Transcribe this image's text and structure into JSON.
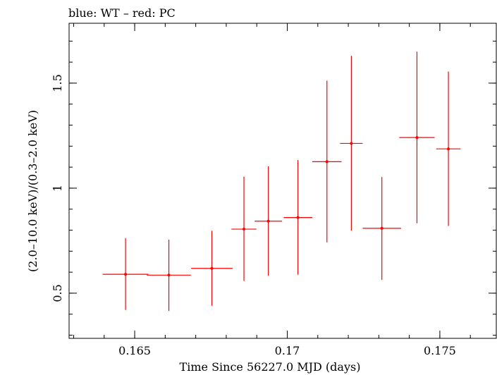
{
  "chart_data": {
    "type": "scatter",
    "title": "blue: WT – red: PC",
    "xlabel": "Time Since 56227.0 MJD (days)",
    "ylabel": "(2.0–10.0 keV)/(0.3–2.0 keV)",
    "xlim": [
      0.16285,
      0.17685
    ],
    "ylim": [
      0.285,
      1.785
    ],
    "x_ticks": [
      {
        "value": 0.165,
        "label": "0.165"
      },
      {
        "value": 0.17,
        "label": "0.17"
      },
      {
        "value": 0.175,
        "label": "0.175"
      }
    ],
    "y_ticks": [
      {
        "value": 0.5,
        "label": "0.5"
      },
      {
        "value": 1.0,
        "label": "1"
      },
      {
        "value": 1.5,
        "label": "1.5"
      }
    ],
    "series": [
      {
        "color": "#ff0000",
        "points": [
          {
            "x": 0.1647,
            "xerr": 0.00075,
            "y": 0.59,
            "ylo": 0.42,
            "yhi": 0.762
          },
          {
            "x": 0.16612,
            "xerr": 0.00072,
            "y": 0.586,
            "ylo": 0.415,
            "yhi": 0.755
          },
          {
            "x": 0.16753,
            "xerr": 0.00068,
            "y": 0.618,
            "ylo": 0.44,
            "yhi": 0.797
          },
          {
            "x": 0.16858,
            "xerr": 0.00041,
            "y": 0.805,
            "ylo": 0.558,
            "yhi": 1.055
          },
          {
            "x": 0.16938,
            "xerr": 0.00045,
            "y": 0.843,
            "ylo": 0.583,
            "yhi": 1.104
          },
          {
            "x": 0.17035,
            "xerr": 0.00047,
            "y": 0.86,
            "ylo": 0.588,
            "yhi": 1.134
          },
          {
            "x": 0.1713,
            "xerr": 0.00048,
            "y": 1.126,
            "ylo": 0.742,
            "yhi": 1.512
          },
          {
            "x": 0.1721,
            "xerr": 0.00037,
            "y": 1.213,
            "ylo": 0.797,
            "yhi": 1.63
          },
          {
            "x": 0.1731,
            "xerr": 0.00063,
            "y": 0.809,
            "ylo": 0.563,
            "yhi": 1.053
          },
          {
            "x": 0.17425,
            "xerr": 0.00058,
            "y": 1.241,
            "ylo": 0.833,
            "yhi": 1.65
          },
          {
            "x": 0.17528,
            "xerr": 0.0004,
            "y": 1.187,
            "ylo": 0.82,
            "yhi": 1.555
          }
        ]
      }
    ]
  }
}
